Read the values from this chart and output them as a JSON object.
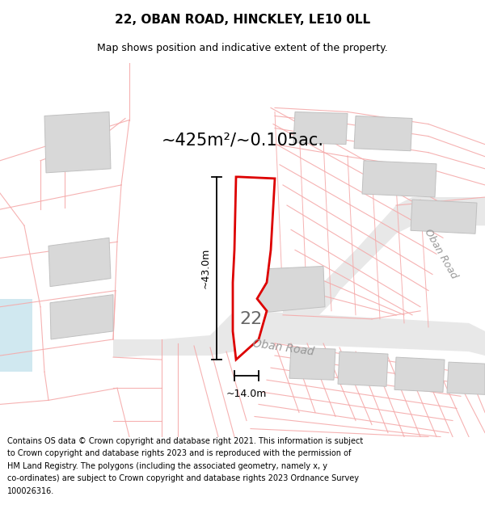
{
  "title_line1": "22, OBAN ROAD, HINCKLEY, LE10 0LL",
  "title_line2": "Map shows position and indicative extent of the property.",
  "area_text": "~425m²/~0.105ac.",
  "dim_vertical": "~43.0m",
  "dim_horizontal": "~14.0m",
  "label_22": "22",
  "road_label_main": "Oban Road",
  "road_label_side": "Oban Road",
  "footer_lines": [
    "Contains OS data © Crown copyright and database right 2021. This information is subject",
    "to Crown copyright and database rights 2023 and is reproduced with the permission of",
    "HM Land Registry. The polygons (including the associated geometry, namely x, y",
    "co-ordinates) are subject to Crown copyright and database rights 2023 Ordnance Survey",
    "100026316."
  ],
  "bg_color": "#ffffff",
  "map_bg": "#ffffff",
  "boundary_color": "#f5aaaa",
  "road_fill": "#e8e8e8",
  "building_fill": "#d8d8d8",
  "building_edge": "#c0c0c0",
  "plot_fill": "#ffffff",
  "plot_edge": "#dd0000",
  "dim_color": "#000000",
  "label_color": "#666666",
  "road_label_color": "#999999",
  "area_text_color": "#000000",
  "title_color": "#000000",
  "footer_color": "#000000"
}
